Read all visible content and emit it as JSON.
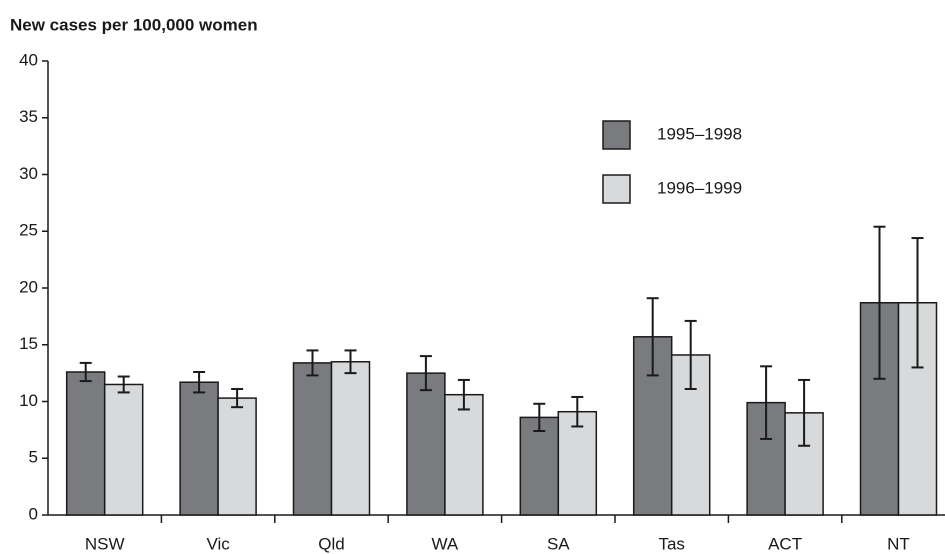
{
  "chart_data": {
    "type": "bar",
    "y_label": "New cases per 100,000 women",
    "categories": [
      "NSW",
      "Vic",
      "Qld",
      "WA",
      "SA",
      "Tas",
      "ACT",
      "NT"
    ],
    "series": [
      {
        "name": "1995–1998",
        "color": "#7a7b7e",
        "values": [
          12.6,
          11.7,
          13.4,
          12.5,
          8.6,
          15.7,
          9.9,
          18.7
        ],
        "errors": [
          0.8,
          0.9,
          1.1,
          1.5,
          1.2,
          3.4,
          3.2,
          6.7
        ]
      },
      {
        "name": "1996–1999",
        "color": "#d8d9db",
        "values": [
          11.5,
          10.3,
          13.5,
          10.6,
          9.1,
          14.1,
          9.0,
          18.7
        ],
        "errors": [
          0.7,
          0.8,
          1.0,
          1.3,
          1.3,
          3.0,
          2.9,
          5.7
        ]
      }
    ],
    "ylim": [
      0,
      40
    ],
    "yticks": [
      0,
      5,
      10,
      15,
      20,
      25,
      30,
      35,
      40
    ],
    "grid": false
  }
}
